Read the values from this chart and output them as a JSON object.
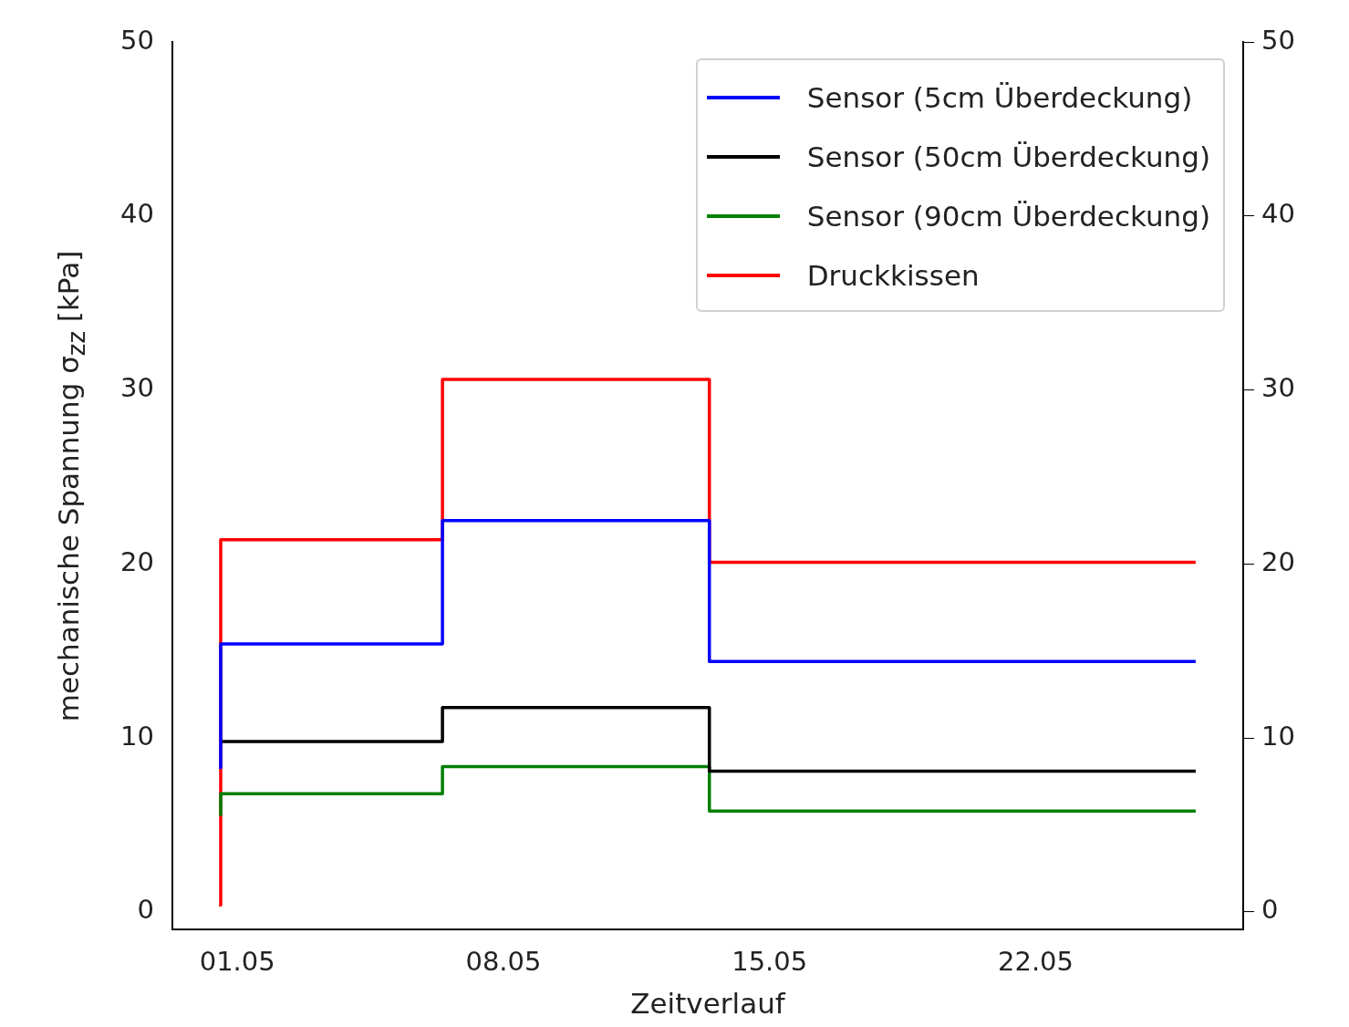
{
  "chart_data": {
    "type": "step",
    "xlabel": "Zeitverlauf",
    "ylabel": "mechanische Spannung σ$_{zz}$ [kPa]",
    "xlim": [
      "--04-29T07:00",
      "--05-27T11:00"
    ],
    "xticks": [
      {
        "value": "--05-01",
        "label": "01.05"
      },
      {
        "value": "--05-08",
        "label": "08.05"
      },
      {
        "value": "--05-15",
        "label": "15.05"
      },
      {
        "value": "--05-22",
        "label": "22.05"
      }
    ],
    "ylim": [
      -1,
      50
    ],
    "yticks": [
      0,
      10,
      20,
      30,
      40,
      50
    ],
    "y2lim": [
      -1,
      50
    ],
    "y2ticks": [
      0,
      10,
      20,
      30,
      40,
      50
    ],
    "x": [
      "--04-30T12:30",
      "--04-30T13:30",
      "--05-06T09:30",
      "--05-13T10:00",
      "--05-26T05:00"
    ],
    "series": [
      {
        "name": "Sensor (5cm Überdeckung)",
        "color": "#0000ff",
        "values": [
          8.3,
          15.4,
          22.5,
          14.4,
          14.4
        ]
      },
      {
        "name": "Sensor (50cm Überdeckung)",
        "color": "#000000",
        "values": [
          null,
          9.8,
          11.75,
          8.1,
          8.1
        ]
      },
      {
        "name": "Sensor (90cm Überdeckung)",
        "color": "#008000",
        "values": [
          5.6,
          6.8,
          8.35,
          5.8,
          5.8
        ]
      },
      {
        "name": "Druckkissen",
        "color": "#ff0000",
        "values": [
          0.4,
          21.4,
          30.6,
          20.1,
          20.1
        ]
      }
    ],
    "legend": "top right",
    "grid": false,
    "marker": "none",
    "line_style": "solid"
  }
}
